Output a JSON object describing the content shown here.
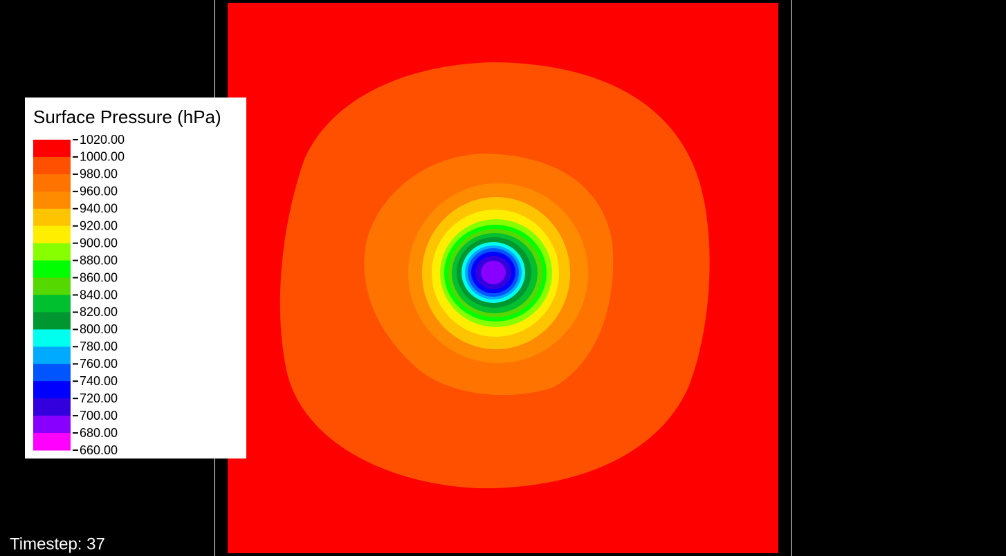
{
  "legend": {
    "title": "Surface Pressure (hPa)",
    "ticks": [
      "1020.00",
      "1000.00",
      "980.00",
      "960.00",
      "940.00",
      "920.00",
      "900.00",
      "880.00",
      "860.00",
      "840.00",
      "820.00",
      "800.00",
      "780.00",
      "760.00",
      "740.00",
      "720.00",
      "700.00",
      "680.00",
      "660.00"
    ],
    "colors": [
      "#ff0000",
      "#ff5000",
      "#ff7400",
      "#ff8c00",
      "#ffc400",
      "#ffee00",
      "#88ff00",
      "#00ff00",
      "#55d800",
      "#00c030",
      "#009630",
      "#00ffee",
      "#00aaff",
      "#0055ff",
      "#0000ff",
      "#3300dd",
      "#8800ff",
      "#ff00ff"
    ]
  },
  "status": {
    "timestep": "Timestep: 37"
  }
}
